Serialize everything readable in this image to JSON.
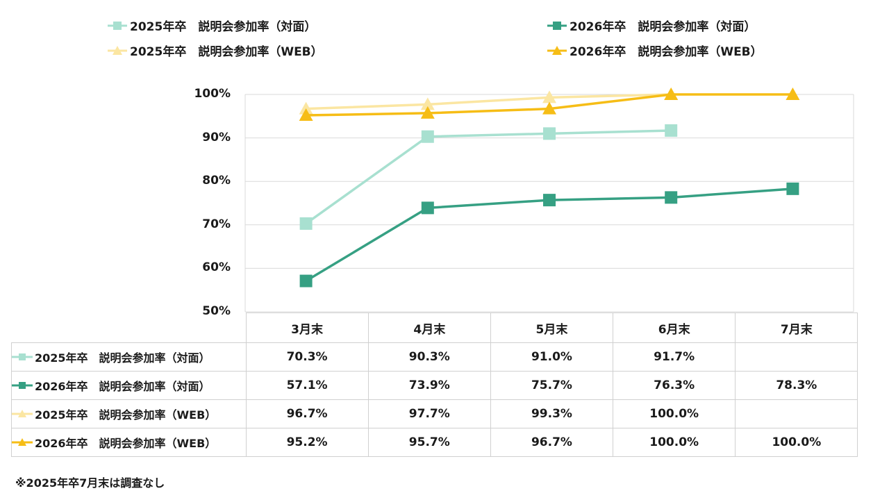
{
  "chart_data": {
    "type": "line",
    "categories": [
      "3月末",
      "4月末",
      "5月末",
      "6月末",
      "7月末"
    ],
    "ylim": [
      50,
      100
    ],
    "yticks": [
      "50%",
      "60%",
      "70%",
      "80%",
      "90%",
      "100%"
    ],
    "ytick_values": [
      50,
      60,
      70,
      80,
      90,
      100
    ],
    "grid": true,
    "legend_position": "top",
    "series": [
      {
        "name": "2025年卒　説明会参加率（対面）",
        "values": [
          70.3,
          90.3,
          91.0,
          91.7,
          null
        ],
        "labels": [
          "70.3%",
          "90.3%",
          "91.0%",
          "91.7%",
          ""
        ],
        "color": "#a8e0d0",
        "marker": "square"
      },
      {
        "name": "2026年卒　説明会参加率（対面）",
        "values": [
          57.1,
          73.9,
          75.7,
          76.3,
          78.3
        ],
        "labels": [
          "57.1%",
          "73.9%",
          "75.7%",
          "76.3%",
          "78.3%"
        ],
        "color": "#36a083",
        "marker": "square"
      },
      {
        "name": "2025年卒　説明会参加率（WEB）",
        "values": [
          96.7,
          97.7,
          99.3,
          100.0,
          null
        ],
        "labels": [
          "96.7%",
          "97.7%",
          "99.3%",
          "100.0%",
          ""
        ],
        "color": "#fbe6a2",
        "marker": "triangle"
      },
      {
        "name": "2026年卒　説明会参加率（WEB）",
        "values": [
          95.2,
          95.7,
          96.7,
          100.0,
          100.0
        ],
        "labels": [
          "95.2%",
          "95.7%",
          "96.7%",
          "100.0%",
          "100.0%"
        ],
        "color": "#f6bd16",
        "marker": "triangle"
      }
    ]
  },
  "note": "※2025年卒7月末は調査なし"
}
